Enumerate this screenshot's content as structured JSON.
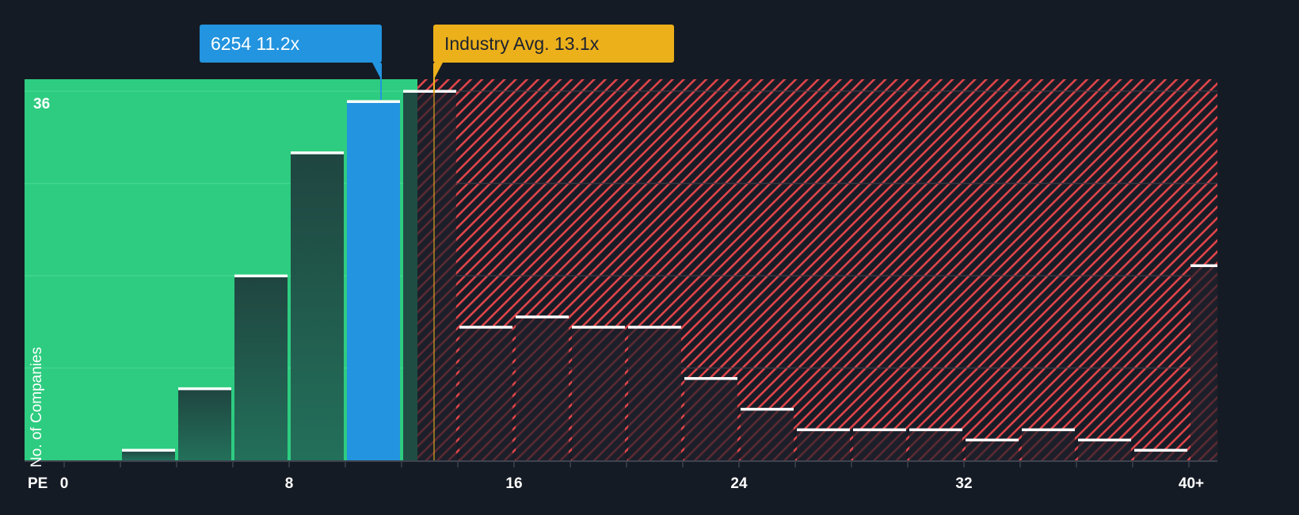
{
  "callouts": {
    "company": {
      "ticker": "6254",
      "value": "11.2x",
      "label": "6254 11.2x",
      "color": "#2394df"
    },
    "industry": {
      "label": "Industry Avg. 13.1x",
      "value": 13.1,
      "color": "#ecb01a"
    }
  },
  "axes": {
    "x_title": "PE",
    "y_title": "No. of Companies",
    "y_max_label": "36",
    "x_ticks": [
      {
        "label": "0",
        "value": 0
      },
      {
        "label": "8",
        "value": 8
      },
      {
        "label": "16",
        "value": 16
      },
      {
        "label": "24",
        "value": 24
      },
      {
        "label": "32",
        "value": 32
      },
      {
        "label": "40+",
        "value": 40
      }
    ]
  },
  "colors": {
    "background": "#151b24",
    "undervalued_zone": "#2ecc80",
    "overvalued_hatch": "#e0454a",
    "bar_fill": "#1e3a36",
    "bar_cap": "#ffffff",
    "company_bar": "#2394df",
    "industry_line": "#ecb01a"
  },
  "chart_data": {
    "type": "bar",
    "title": "",
    "xlabel": "PE",
    "ylabel": "No. of Companies",
    "ylim": [
      0,
      37
    ],
    "y_gridlines": [
      0,
      9,
      18,
      27,
      36
    ],
    "grid": true,
    "categories": [
      "0-2",
      "2-4",
      "4-6",
      "6-8",
      "8-10",
      "10-12",
      "12-14",
      "14-16",
      "16-18",
      "18-20",
      "20-22",
      "22-24",
      "24-26",
      "26-28",
      "28-30",
      "30-32",
      "32-34",
      "34-36",
      "36-38",
      "38-40",
      "40+"
    ],
    "values": [
      0,
      1,
      7,
      18,
      30,
      35,
      36,
      13,
      14,
      13,
      13,
      8,
      5,
      3,
      3,
      3,
      2,
      3,
      2,
      1,
      19
    ],
    "highlight": {
      "category": "10-12",
      "label": "6254 11.2x",
      "pe": 11.2
    },
    "reference_line": {
      "label": "Industry Avg. 13.1x",
      "pe": 13.1
    },
    "zones": [
      {
        "name": "undervalued",
        "from": 0,
        "to": 12.6,
        "style": "solid green"
      },
      {
        "name": "overvalued",
        "from": 12.6,
        "to": 41,
        "style": "red hatch"
      }
    ]
  }
}
